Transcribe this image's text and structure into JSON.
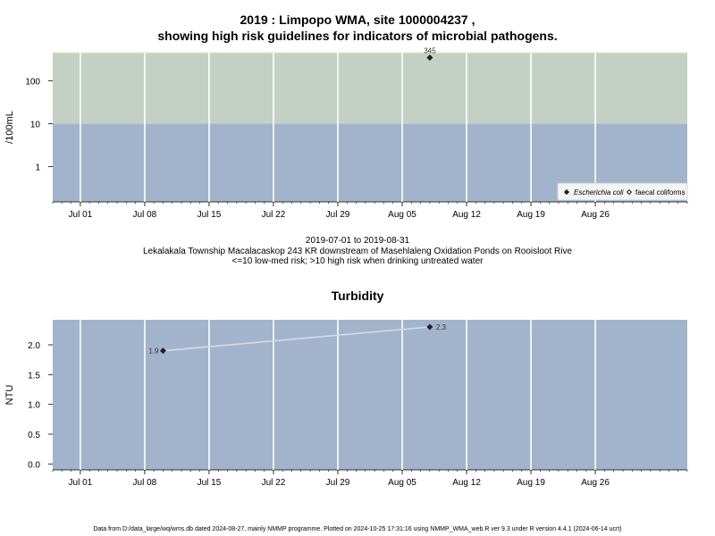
{
  "chart_data": [
    {
      "type": "scatter",
      "title_line1": "2019 : Limpopo WMA, site 1000004237 ,",
      "title_line2": "showing high risk guidelines for indicators of microbial pathogens.",
      "ylabel": "/100mL",
      "y_scale": "log",
      "ylim": [
        0.15,
        450
      ],
      "yticks": [
        "1",
        "10",
        "100"
      ],
      "x_ticks": [
        "Jul 01",
        "Jul 08",
        "Jul 15",
        "Jul 22",
        "Jul 29",
        "Aug 05",
        "Aug 12",
        "Aug 19",
        "Aug 26"
      ],
      "x_tick_dates": [
        "2019-07-01",
        "2019-07-08",
        "2019-07-15",
        "2019-07-22",
        "2019-07-29",
        "2019-08-05",
        "2019-08-12",
        "2019-08-19",
        "2019-08-26"
      ],
      "xlim": [
        "2019-06-28",
        "2019-09-05"
      ],
      "bands": [
        {
          "from": 0.15,
          "to": 10,
          "color": "#a2b4cc"
        },
        {
          "from": 10,
          "to": 450,
          "color": "#c5d0c5"
        }
      ],
      "series": [
        {
          "name": "Escherichia coli",
          "marker": "filled-diamond",
          "color": "#222222",
          "x": [
            "2019-08-08"
          ],
          "y": [
            345
          ],
          "labels": [
            "345"
          ]
        },
        {
          "name": "faecal coliforms",
          "marker": "open-diamond",
          "color": "#222222",
          "x": [],
          "y": [],
          "labels": []
        }
      ],
      "legend_position": "bottom-right",
      "grid": true
    },
    {
      "type": "line",
      "title": "Turbidity",
      "ylabel": "NTU",
      "ylim": [
        -0.1,
        2.42
      ],
      "yticks": [
        "0.0",
        "0.5",
        "1.0",
        "1.5",
        "2.0"
      ],
      "ytick_values": [
        0,
        0.5,
        1.0,
        1.5,
        2.0
      ],
      "x_ticks": [
        "Jul 01",
        "Jul 08",
        "Jul 15",
        "Jul 22",
        "Jul 29",
        "Aug 05",
        "Aug 12",
        "Aug 19",
        "Aug 26"
      ],
      "x_tick_dates": [
        "2019-07-01",
        "2019-07-08",
        "2019-07-15",
        "2019-07-22",
        "2019-07-29",
        "2019-08-05",
        "2019-08-12",
        "2019-08-19",
        "2019-08-26"
      ],
      "xlim": [
        "2019-06-28",
        "2019-09-05"
      ],
      "series": [
        {
          "name": "",
          "x": [
            "2019-07-10",
            "2019-08-08"
          ],
          "y": [
            1.9,
            2.3
          ],
          "labels": [
            "1.9",
            "2.3"
          ],
          "line_color": "#d4dbe6",
          "marker_color": "#222222"
        }
      ],
      "background": "#a2b4cc",
      "grid": true
    }
  ],
  "middle_text": {
    "date_range": "2019-07-01 to 2019-08-31",
    "site_description": "Lekalakala Township Macalacaskop 243 KR downstream of Masehlaleng Oxidation Ponds on Rooisloot Rive",
    "risk_note": "<=10 low-med risk; >10 high risk when drinking untreated water"
  },
  "footer": "Data from D:/data_large/wq/wms.db dated 2024-08-27, mainly NMMP programme. Plotted on 2024-10-25 17:31:16 using NMMP_WMA_web.R ver 9.3 under R version 4.4.1 (2024-06-14 ucrt)"
}
